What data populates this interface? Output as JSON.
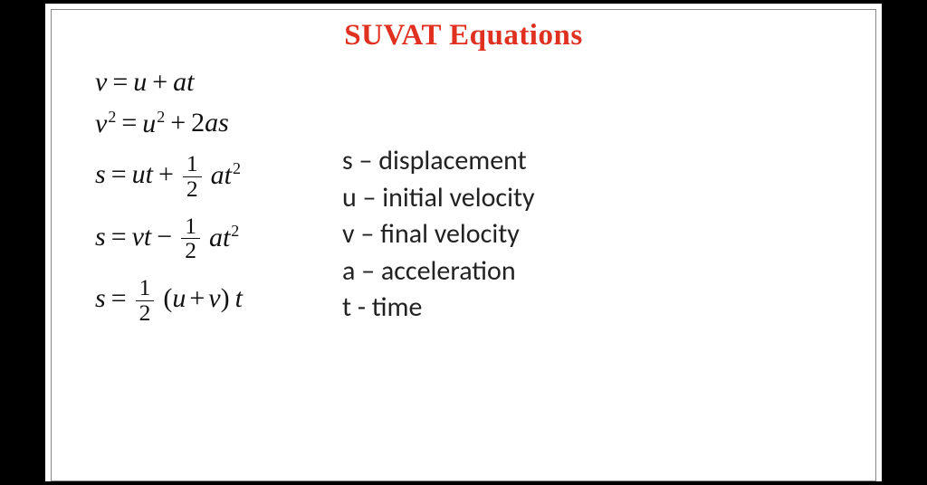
{
  "title": "SUVAT Equations",
  "colors": {
    "background_outer": "#000000",
    "background_inner": "#ffffff",
    "title_color": "#e03020",
    "text_color": "#111111",
    "border_color": "#888888"
  },
  "typography": {
    "title_fontsize_pt": 25,
    "equation_fontsize_pt": 22,
    "legend_fontsize_pt": 22,
    "equation_font": "Times New Roman",
    "legend_font": "Calibri"
  },
  "equations": {
    "eq1": {
      "lhs": "v",
      "rhs_a": "u",
      "rhs_b": "at",
      "op": "+"
    },
    "eq2": {
      "lhs_base": "v",
      "lhs_exp": "2",
      "rhs_a_base": "u",
      "rhs_a_exp": "2",
      "op": "+",
      "rhs_b_coef": "2",
      "rhs_b_vars": "as"
    },
    "eq3": {
      "lhs": "s",
      "rhs_a": "ut",
      "op": "+",
      "frac_num": "1",
      "frac_den": "2",
      "rhs_b_base": "at",
      "rhs_b_exp": "2"
    },
    "eq4": {
      "lhs": "s",
      "rhs_a": "vt",
      "op": "−",
      "frac_num": "1",
      "frac_den": "2",
      "rhs_b_base": "at",
      "rhs_b_exp": "2"
    },
    "eq5": {
      "lhs": "s",
      "frac_num": "1",
      "frac_den": "2",
      "paren_l": "(",
      "inner_a": "u",
      "inner_op": "+",
      "inner_b": "v",
      "paren_r": ")",
      "tail": "t"
    }
  },
  "legend": [
    {
      "sym": "s",
      "dash": "–",
      "desc": "displacement"
    },
    {
      "sym": "u",
      "dash": "–",
      "desc": "initial velocity"
    },
    {
      "sym": "v",
      "dash": "–",
      "desc": "final velocity"
    },
    {
      "sym": "a",
      "dash": "–",
      "desc": "acceleration"
    },
    {
      "sym": "t",
      "dash": "-",
      "desc": "time"
    }
  ]
}
